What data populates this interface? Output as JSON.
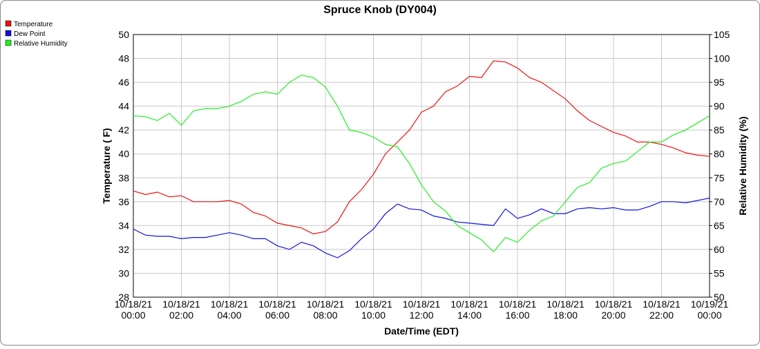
{
  "chart_data": {
    "type": "line",
    "title": "Spruce Knob (DY004)",
    "x_label": "Date/Time (EDT)",
    "y_label": "Temperature ( F)",
    "y2_label": "Relative Humidity (%)",
    "x": [
      "10/18/21 00:00",
      "10/18/21 00:30",
      "10/18/21 01:00",
      "10/18/21 01:30",
      "10/18/21 02:00",
      "10/18/21 02:30",
      "10/18/21 03:00",
      "10/18/21 03:30",
      "10/18/21 04:00",
      "10/18/21 04:30",
      "10/18/21 05:00",
      "10/18/21 05:30",
      "10/18/21 06:00",
      "10/18/21 06:30",
      "10/18/21 07:00",
      "10/18/21 07:30",
      "10/18/21 08:00",
      "10/18/21 08:30",
      "10/18/21 09:00",
      "10/18/21 09:30",
      "10/18/21 10:00",
      "10/18/21 10:30",
      "10/18/21 11:00",
      "10/18/21 11:30",
      "10/18/21 12:00",
      "10/18/21 12:30",
      "10/18/21 13:00",
      "10/18/21 13:30",
      "10/18/21 14:00",
      "10/18/21 14:30",
      "10/18/21 15:00",
      "10/18/21 15:30",
      "10/18/21 16:00",
      "10/18/21 16:30",
      "10/18/21 17:00",
      "10/18/21 17:30",
      "10/18/21 18:00",
      "10/18/21 18:30",
      "10/18/21 19:00",
      "10/18/21 19:30",
      "10/18/21 20:00",
      "10/18/21 20:30",
      "10/18/21 21:00",
      "10/18/21 21:30",
      "10/18/21 22:00",
      "10/18/21 22:30",
      "10/18/21 23:00",
      "10/18/21 23:30",
      "10/19/21 00:00"
    ],
    "xticks": [
      {
        "date": "10/18/21",
        "time": "00:00"
      },
      {
        "date": "10/18/21",
        "time": "02:00"
      },
      {
        "date": "10/18/21",
        "time": "04:00"
      },
      {
        "date": "10/18/21",
        "time": "06:00"
      },
      {
        "date": "10/18/21",
        "time": "08:00"
      },
      {
        "date": "10/18/21",
        "time": "10:00"
      },
      {
        "date": "10/18/21",
        "time": "12:00"
      },
      {
        "date": "10/18/21",
        "time": "14:00"
      },
      {
        "date": "10/18/21",
        "time": "16:00"
      },
      {
        "date": "10/18/21",
        "time": "18:00"
      },
      {
        "date": "10/18/21",
        "time": "20:00"
      },
      {
        "date": "10/18/21",
        "time": "22:00"
      },
      {
        "date": "10/19/21",
        "time": "00:00"
      }
    ],
    "ylim": [
      28,
      50
    ],
    "yticks": [
      28,
      30,
      32,
      34,
      36,
      38,
      40,
      42,
      44,
      46,
      48,
      50
    ],
    "y2lim": [
      50,
      105
    ],
    "y2ticks": [
      50,
      55,
      60,
      65,
      70,
      75,
      80,
      85,
      90,
      95,
      100,
      105
    ],
    "grid": true,
    "legend": "top-left",
    "series": [
      {
        "name": "Temperature",
        "color": "#ee1111",
        "values": [
          36.9,
          36.6,
          36.8,
          36.4,
          36.5,
          36.0,
          36.0,
          36.0,
          36.1,
          35.8,
          35.1,
          34.8,
          34.2,
          34.0,
          33.8,
          33.3,
          33.5,
          34.3,
          36.0,
          37.0,
          38.3,
          40.0,
          41.0,
          42.0,
          43.5,
          44.0,
          45.2,
          45.7,
          46.5,
          46.4,
          47.8,
          47.7,
          47.2,
          46.4,
          46.0,
          45.3,
          44.6,
          43.6,
          42.8,
          42.3,
          41.8,
          41.5,
          41.0,
          41.0,
          40.8,
          40.5,
          40.1,
          39.9,
          39.8
        ]
      },
      {
        "name": "Dew Point",
        "color": "#1111dd",
        "values": [
          33.7,
          33.2,
          33.1,
          33.1,
          32.9,
          33.0,
          33.0,
          33.2,
          33.4,
          33.2,
          32.9,
          32.9,
          32.3,
          32.0,
          32.6,
          32.3,
          31.7,
          31.3,
          31.9,
          32.9,
          33.7,
          35.0,
          35.8,
          35.4,
          35.3,
          34.8,
          34.6,
          34.3,
          34.2,
          34.1,
          34.0,
          35.4,
          34.6,
          34.9,
          35.4,
          35.0,
          35.0,
          35.4,
          35.5,
          35.4,
          35.5,
          35.3,
          35.3,
          35.6,
          36.0,
          36.0,
          35.9,
          36.1,
          36.3
        ]
      },
      {
        "name": "Relative Humidity",
        "color": "#22ee22",
        "axis": "y2",
        "values": [
          88,
          87.8,
          87,
          88.5,
          86,
          89,
          89.5,
          89.5,
          90,
          91,
          92.5,
          93,
          92.5,
          95,
          96.5,
          96,
          94,
          90,
          85,
          84.5,
          83.5,
          82,
          81.5,
          78,
          73.5,
          70,
          68,
          65,
          63.5,
          62,
          59.5,
          62.5,
          61.5,
          64,
          66,
          67,
          70,
          73,
          74,
          77,
          78,
          78.5,
          80.5,
          82.5,
          82.5,
          84,
          85,
          86.5,
          88
        ]
      }
    ]
  }
}
